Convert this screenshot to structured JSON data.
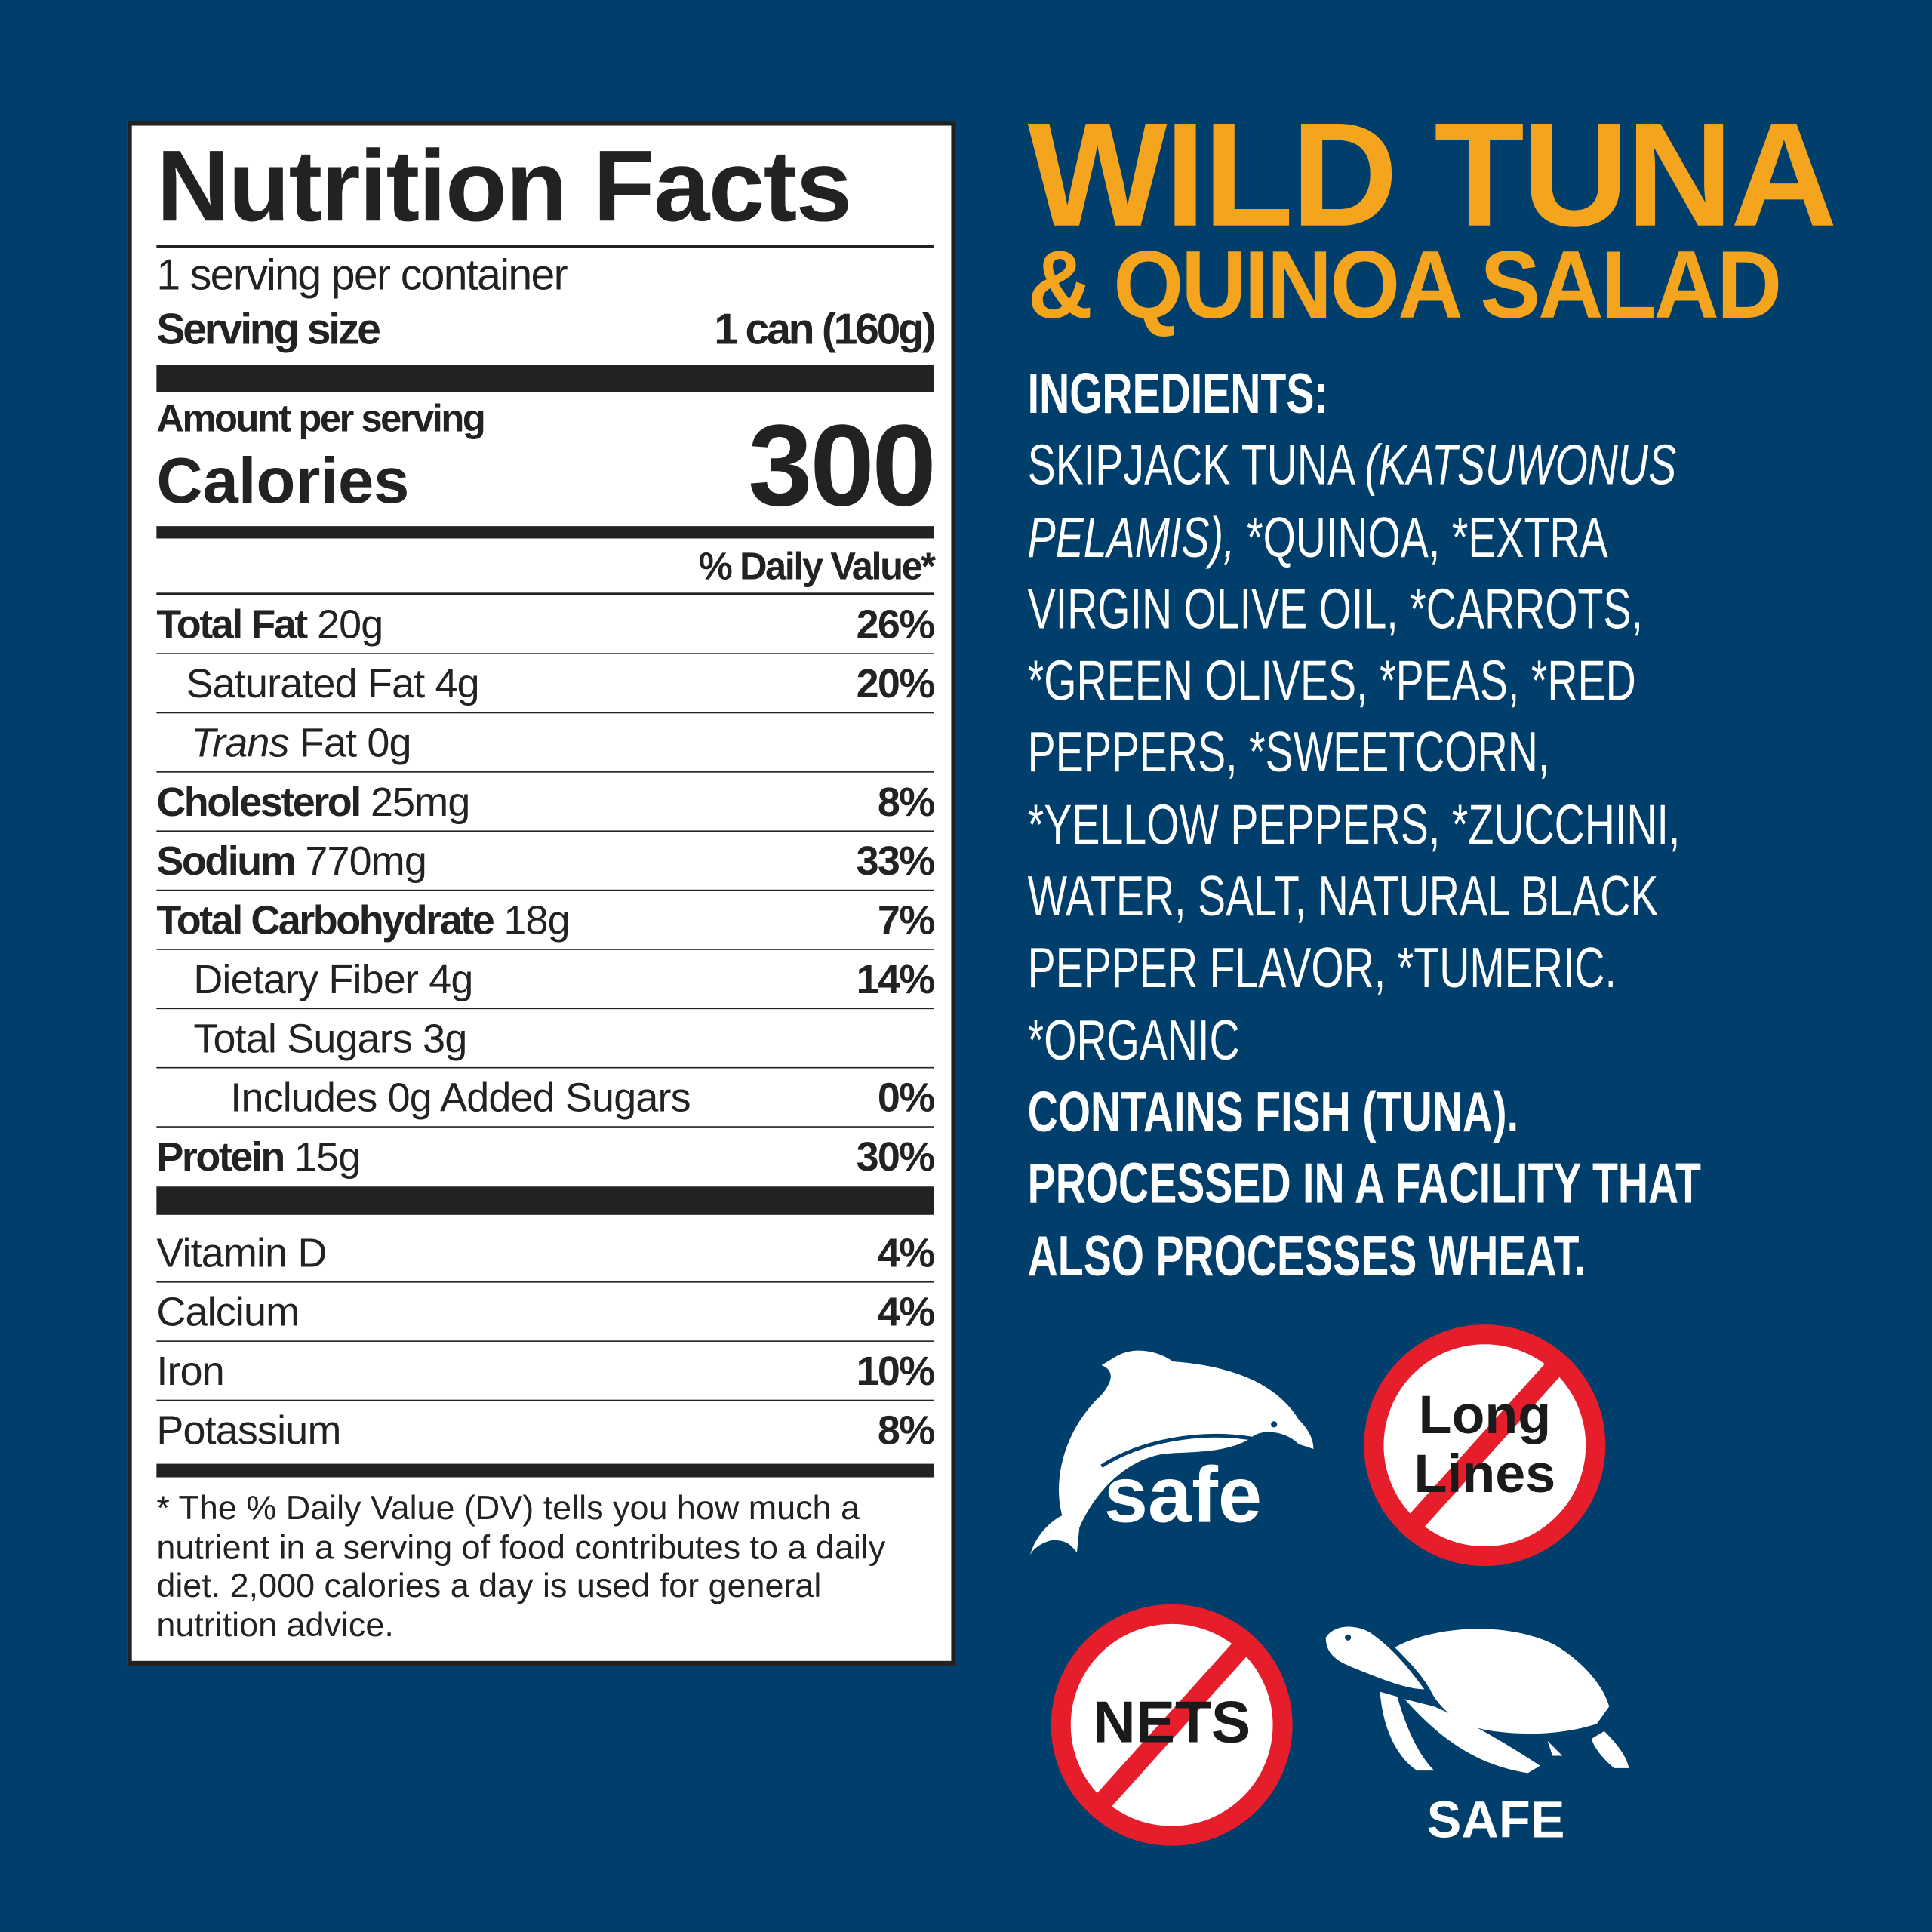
{
  "label": {
    "title": "Nutrition Facts",
    "servings_per_container": "1 serving per container",
    "serving_size_label": "Serving size",
    "serving_size_value": "1 can (160g)",
    "amount_per_serving": "Amount per serving",
    "calories_label": "Calories",
    "calories_value": "300",
    "daily_value_header": "% Daily Value*",
    "nutrients": [
      {
        "name": "Total Fat",
        "amount": "20g",
        "pct": "26%"
      },
      {
        "name": "Saturated Fat 4g",
        "amount": "",
        "pct": "20%"
      },
      {
        "name": "Trans",
        "amount": "Fat 0g",
        "pct": ""
      },
      {
        "name": "Cholesterol",
        "amount": "25mg",
        "pct": "8%"
      },
      {
        "name": "Sodium",
        "amount": "770mg",
        "pct": "33%"
      },
      {
        "name": "Total Carbohydrate",
        "amount": "18g",
        "pct": "7%"
      },
      {
        "name": "Dietary Fiber 4g",
        "amount": "",
        "pct": "14%"
      },
      {
        "name": "Total Sugars 3g",
        "amount": "",
        "pct": ""
      },
      {
        "name": "Includes 0g Added Sugars",
        "amount": "",
        "pct": "0%"
      },
      {
        "name": "Protein",
        "amount": "15g",
        "pct": "30%"
      }
    ],
    "vitamins": [
      {
        "name": "Vitamin D",
        "pct": "4%"
      },
      {
        "name": "Calcium",
        "pct": "4%"
      },
      {
        "name": "Iron",
        "pct": "10%"
      },
      {
        "name": "Potassium",
        "pct": "8%"
      }
    ],
    "footnote": "* The % Daily Value (DV) tells you how much a nutrient in a serving of food contributes to a daily diet. 2,000 calories a day is used for general nutrition advice."
  },
  "product": {
    "title_line1": "WILD TUNA",
    "title_line2": "& QUINOA SALAD",
    "title_color": "#f5a41d"
  },
  "ingredients": {
    "heading": "INGREDIENTS:",
    "line1_a": "SKIPJACK TUNA ",
    "line1_b": "(KATSUWONUS",
    "line2_a": "PELAMIS),",
    "line2_b": " *QUINOA, *EXTRA",
    "lines": [
      "VIRGIN OLIVE OIL, *CARROTS,",
      "*GREEN OLIVES, *PEAS, *RED",
      "PEPPERS, *SWEETCORN,",
      "*YELLOW PEPPERS, *ZUCCHINI,",
      "WATER, SALT, NATURAL BLACK",
      "PEPPER FLAVOR, *TUMERIC.",
      "*ORGANIC"
    ],
    "allergens": [
      "CONTAINS FISH (TUNA).",
      "PROCESSED IN A FACILITY THAT",
      "ALSO PROCESSES WHEAT."
    ]
  },
  "badges": {
    "dolphin_safe": "safe",
    "long_lines_1": "Long",
    "long_lines_2": "Lines",
    "nets": "NETS",
    "turtle_safe": "SAFE",
    "red": "#e61e2b"
  }
}
